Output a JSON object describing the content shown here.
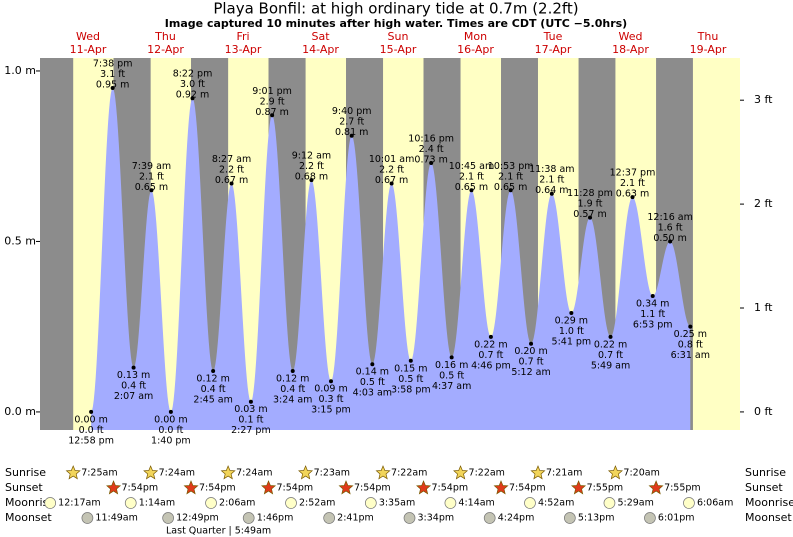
{
  "chart_data": {
    "type": "area",
    "title": "Playa Bonfil: at high  ordinary tide at 0.7m (2.2ft)",
    "subtitle": "Image captured 10 minutes after high water. Times are CDT (UTC −5.0hrs)",
    "days": [
      {
        "weekday": "Wed",
        "date": "11-Apr"
      },
      {
        "weekday": "Thu",
        "date": "12-Apr"
      },
      {
        "weekday": "Fri",
        "date": "13-Apr"
      },
      {
        "weekday": "Sat",
        "date": "14-Apr"
      },
      {
        "weekday": "Sun",
        "date": "15-Apr"
      },
      {
        "weekday": "Mon",
        "date": "16-Apr"
      },
      {
        "weekday": "Tue",
        "date": "17-Apr"
      },
      {
        "weekday": "Wed",
        "date": "18-Apr"
      },
      {
        "weekday": "Thu",
        "date": "19-Apr"
      }
    ],
    "ylim": [
      -0.053,
      1.038
    ],
    "yticks": [
      {
        "value": 0,
        "label": "0.0 m"
      },
      {
        "value": 0.5,
        "label": "0.5 m"
      },
      {
        "value": 1,
        "label": "1.0 m"
      }
    ],
    "y2lim": [
      -0.174,
      3.406
    ],
    "y2ticks": [
      {
        "value": 0,
        "label": "0 ft"
      },
      {
        "value": 1,
        "label": "1 ft"
      },
      {
        "value": 2,
        "label": "2 ft"
      },
      {
        "value": 3,
        "label": "3 ft"
      }
    ],
    "fill_color": "#a3acff",
    "day_color": "#ffffc4",
    "night_color": "#8c8c8c",
    "extremes": {
      "times": [
        "12:58 pm",
        "7:38 pm",
        "2:07 am",
        "7:39 am",
        "1:40 pm",
        "8:22 pm",
        "2:45 am",
        "8:27 am",
        "2:27 pm",
        "9:01 pm",
        "3:24 am",
        "9:12 am",
        "3:15 pm",
        "9:40 pm",
        "4:03 am",
        "10:01 am",
        "3:58 pm",
        "10:16 pm",
        "4:37 am",
        "10:45 am",
        "4:46 pm",
        "10:53 pm",
        "5:12 am",
        "11:38 am",
        "5:41 pm",
        "11:28 pm",
        "5:49 am",
        "12:37 pm",
        "6:53 pm",
        "12:16 am",
        "6:31 am"
      ],
      "values": [
        0.0,
        0.95,
        0.13,
        0.65,
        0.0,
        0.92,
        0.12,
        0.67,
        0.03,
        0.87,
        0.12,
        0.68,
        0.09,
        0.81,
        0.14,
        0.67,
        0.15,
        0.73,
        0.16,
        0.65,
        0.22,
        0.65,
        0.2,
        0.64,
        0.29,
        0.57,
        0.22,
        0.63,
        0.34,
        0.5,
        0.25
      ],
      "value_labels": [
        "0.00 m",
        "0.95 m",
        "0.13 m",
        "0.65 m",
        "0.00 m",
        "0.92 m",
        "0.12 m",
        "0.67 m",
        "0.03 m",
        "0.87 m",
        "0.12 m",
        "0.68 m",
        "0.09 m",
        "0.81 m",
        "0.14 m",
        "0.67 m",
        "0.15 m",
        "0.73 m",
        "0.16 m",
        "0.65 m",
        "0.22 m",
        "0.65 m",
        "0.20 m",
        "0.64 m",
        "0.29 m",
        "0.57 m",
        "0.22 m",
        "0.63 m",
        "0.34 m",
        "0.50 m",
        "0.25 m"
      ],
      "ft_labels": [
        "0.0 ft",
        "3.1 ft",
        "0.4 ft",
        "2.1 ft",
        "0.0 ft",
        "3.0 ft",
        "0.4 ft",
        "2.2 ft",
        "0.1 ft",
        "2.9 ft",
        "0.4 ft",
        "2.2 ft",
        "0.3 ft",
        "2.7 ft",
        "0.5 ft",
        "2.2 ft",
        "0.5 ft",
        "2.4 ft",
        "0.5 ft",
        "2.1 ft",
        "0.7 ft",
        "2.1 ft",
        "0.7 ft",
        "2.1 ft",
        "1.0 ft",
        "1.9 ft",
        "0.7 ft",
        "2.1 ft",
        "1.1 ft",
        "1.6 ft",
        "0.8 ft"
      ]
    }
  },
  "astronomy": {
    "rows": [
      {
        "label": "Sunrise",
        "times": [
          "7:25am",
          "7:24am",
          "7:24am",
          "7:23am",
          "7:22am",
          "7:22am",
          "7:21am",
          "7:20am"
        ]
      },
      {
        "label": "Sunset",
        "times": [
          "7:54pm",
          "7:54pm",
          "7:54pm",
          "7:54pm",
          "7:54pm",
          "7:54pm",
          "7:55pm",
          "7:55pm"
        ]
      },
      {
        "label": "Moonrise",
        "times": [
          "12:17am",
          "1:14am",
          "2:06am",
          "2:52am",
          "3:35am",
          "4:14am",
          "4:52am",
          "5:29am",
          "6:06am"
        ]
      },
      {
        "label": "Moonset",
        "times": [
          "11:49am",
          "12:49pm",
          "1:46pm",
          "2:41pm",
          "3:34pm",
          "4:24pm",
          "5:13pm",
          "6:01pm"
        ]
      }
    ],
    "moon_phase": "Last Quarter | 5:49am"
  }
}
